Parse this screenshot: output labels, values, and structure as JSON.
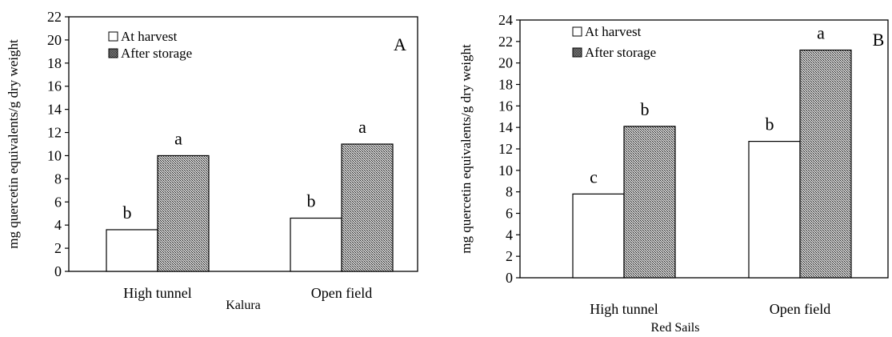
{
  "chart_data": [
    {
      "type": "bar",
      "panel_label": "A",
      "xlabel": "Kalura",
      "ylabel": "mg quercetin equivalents/g dry weight",
      "categories": [
        "High tunnel",
        "Open field"
      ],
      "ylim": [
        0,
        22
      ],
      "yticks": [
        0,
        2,
        4,
        6,
        8,
        10,
        12,
        14,
        16,
        18,
        20,
        22
      ],
      "grid": false,
      "legend_position": "top-left",
      "series": [
        {
          "name": "At harvest",
          "pattern": "white",
          "values": [
            3.6,
            4.6
          ],
          "labels": [
            "b",
            "b"
          ]
        },
        {
          "name": "After storage",
          "pattern": "crosshatch",
          "values": [
            10.0,
            11.0
          ],
          "labels": [
            "a",
            "a"
          ]
        }
      ]
    },
    {
      "type": "bar",
      "panel_label": "B",
      "xlabel": "Red Sails",
      "ylabel": "mg quercetin equivalents/g dry weight",
      "categories": [
        "High tunnel",
        "Open field"
      ],
      "ylim": [
        0,
        24
      ],
      "yticks": [
        0,
        2,
        4,
        6,
        8,
        10,
        12,
        14,
        16,
        18,
        20,
        22,
        24
      ],
      "grid": false,
      "legend_position": "top-left",
      "series": [
        {
          "name": "At harvest",
          "pattern": "white",
          "values": [
            7.8,
            12.7
          ],
          "labels": [
            "c",
            "b"
          ]
        },
        {
          "name": "After storage",
          "pattern": "crosshatch",
          "values": [
            14.1,
            21.2
          ],
          "labels": [
            "b",
            "a"
          ]
        }
      ]
    }
  ]
}
